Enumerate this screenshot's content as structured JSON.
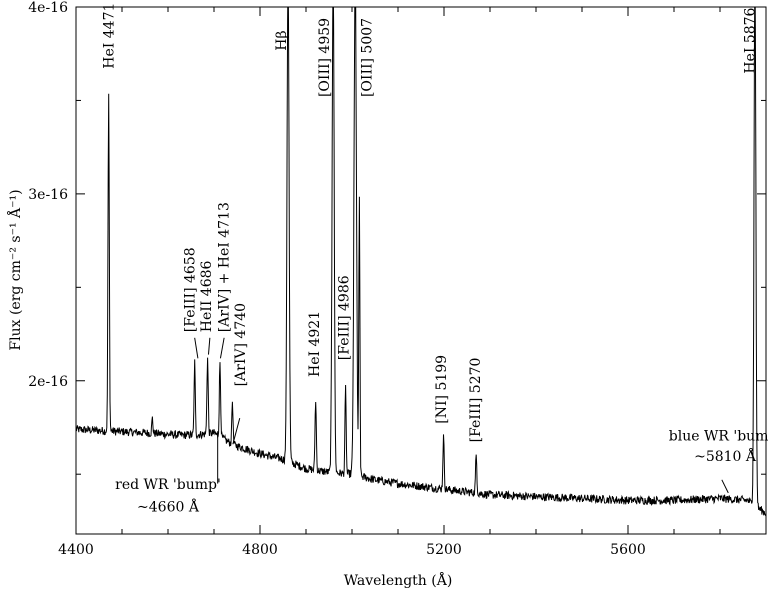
{
  "chart_data": {
    "type": "line",
    "xlabel": "Wavelength  (Å)",
    "ylabel": "Flux (erg cm⁻² s⁻¹ Å⁻¹)",
    "xlim": [
      4400,
      5900
    ],
    "ylim": [
      1.18e-16,
      4e-16
    ],
    "x_ticks": [
      {
        "value": 4400,
        "label": "4400"
      },
      {
        "value": 4800,
        "label": "4800"
      },
      {
        "value": 5200,
        "label": "5200"
      },
      {
        "value": 5600,
        "label": "5600"
      }
    ],
    "y_ticks": [
      {
        "value": 2e-16,
        "label": "2e-16"
      },
      {
        "value": 3e-16,
        "label": "3e-16"
      },
      {
        "value": 4e-16,
        "label": "4e-16"
      }
    ],
    "grid": false,
    "continuum": [
      [
        4400,
        1.74e-16
      ],
      [
        4480,
        1.73e-16
      ],
      [
        4560,
        1.72e-16
      ],
      [
        4620,
        1.71e-16
      ],
      [
        4660,
        1.71e-16
      ],
      [
        4700,
        1.72e-16
      ],
      [
        4740,
        1.66e-16
      ],
      [
        4800,
        1.61e-16
      ],
      [
        4850,
        1.58e-16
      ],
      [
        4900,
        1.53e-16
      ],
      [
        4950,
        1.51e-16
      ],
      [
        5000,
        1.5e-16
      ],
      [
        5050,
        1.47e-16
      ],
      [
        5100,
        1.45e-16
      ],
      [
        5200,
        1.42e-16
      ],
      [
        5300,
        1.39e-16
      ],
      [
        5400,
        1.38e-16
      ],
      [
        5500,
        1.37e-16
      ],
      [
        5600,
        1.36e-16
      ],
      [
        5700,
        1.36e-16
      ],
      [
        5800,
        1.37e-16
      ],
      [
        5860,
        1.36e-16
      ],
      [
        5900,
        1.29e-16
      ]
    ],
    "lines": [
      {
        "x": 4471,
        "peak": 3.52e-16,
        "width": 1.4
      },
      {
        "x": 4566,
        "peak": 1.8e-16,
        "width": 1.2
      },
      {
        "x": 4658,
        "peak": 2.1e-16,
        "width": 1.3
      },
      {
        "x": 4686,
        "peak": 2.12e-16,
        "width": 1.4
      },
      {
        "x": 4713,
        "peak": 2.1e-16,
        "width": 1.4
      },
      {
        "x": 4740,
        "peak": 1.89e-16,
        "width": 1.3
      },
      {
        "x": 4861,
        "peak": 4.2e-16,
        "width": 2.2
      },
      {
        "x": 4921,
        "peak": 1.9e-16,
        "width": 1.4
      },
      {
        "x": 4959,
        "peak": 4.2e-16,
        "width": 2.2
      },
      {
        "x": 4986,
        "peak": 1.96e-16,
        "width": 1.3
      },
      {
        "x": 5007,
        "peak": 4.2e-16,
        "width": 2.6
      },
      {
        "x": 5016,
        "peak": 2.96e-16,
        "width": 1.2
      },
      {
        "x": 5199,
        "peak": 1.7e-16,
        "width": 1.4
      },
      {
        "x": 5270,
        "peak": 1.6e-16,
        "width": 1.4
      },
      {
        "x": 5876,
        "peak": 4.2e-16,
        "width": 2.0
      }
    ],
    "noise_amplitude": 2.2e-18,
    "annotations": [
      {
        "text": "HeI 4471",
        "x": 4471,
        "y": 3.67e-16,
        "anchor": "start",
        "rotate": true
      },
      {
        "text": "Hβ",
        "x": 4846,
        "y": 3.82e-16,
        "anchor": "middle",
        "rotate": true
      },
      {
        "text": "[OIII] 4959",
        "x": 4939,
        "y": 3.73e-16,
        "anchor": "middle",
        "rotate": true
      },
      {
        "text": "[OIII] 5007",
        "x": 5032,
        "y": 3.73e-16,
        "anchor": "middle",
        "rotate": true
      },
      {
        "text": "HeI 5876",
        "x": 5864,
        "y": 3.82e-16,
        "anchor": "middle",
        "rotate": true
      },
      {
        "text": "[FeIII] 4658",
        "x": 4647,
        "y": 2.26e-16,
        "anchor": "start",
        "rotate": true
      },
      {
        "text": "HeII 4686",
        "x": 4683,
        "y": 2.26e-16,
        "anchor": "start",
        "rotate": true
      },
      {
        "text": "[ArIV] + HeI 4713",
        "x": 4721,
        "y": 2.26e-16,
        "anchor": "start",
        "rotate": true
      },
      {
        "text": "[ArIV] 4740",
        "x": 4757,
        "y": 1.97e-16,
        "anchor": "start",
        "rotate": true
      },
      {
        "text": "HeI 4921",
        "x": 4917,
        "y": 2.02e-16,
        "anchor": "start",
        "rotate": true
      },
      {
        "text": "[FeIII] 4986",
        "x": 4982,
        "y": 2.11e-16,
        "anchor": "start",
        "rotate": true
      },
      {
        "text": "[NI] 5199",
        "x": 5194,
        "y": 1.77e-16,
        "anchor": "start",
        "rotate": true
      },
      {
        "text": "[FeIII] 5270",
        "x": 5267,
        "y": 1.67e-16,
        "anchor": "start",
        "rotate": true
      },
      {
        "text": "red WR 'bump'",
        "x": 4600,
        "y": 1.42e-16,
        "anchor": "middle",
        "rotate": false
      },
      {
        "text": "~4660 Å",
        "x": 4600,
        "y": 1.3e-16,
        "anchor": "middle",
        "rotate": false
      },
      {
        "text": "blue WR 'bump'",
        "x": 5811,
        "y": 1.68e-16,
        "anchor": "middle",
        "rotate": false
      },
      {
        "text": "~5810 Å",
        "x": 5811,
        "y": 1.57e-16,
        "anchor": "middle",
        "rotate": false
      }
    ],
    "leaders": [
      {
        "x1": 4658,
        "y1": 2.23e-16,
        "x2": 4665,
        "y2": 2.12e-16
      },
      {
        "x1": 4691,
        "y1": 2.23e-16,
        "x2": 4688,
        "y2": 2.14e-16
      },
      {
        "x1": 4722,
        "y1": 2.23e-16,
        "x2": 4714,
        "y2": 2.12e-16
      },
      {
        "x1": 4756,
        "y1": 1.8e-16,
        "x2": 4741,
        "y2": 1.66e-16
      },
      {
        "x1": 4708,
        "y1": 1.45e-16,
        "x2": 4708,
        "y2": 1.73e-16
      },
      {
        "x1": 5804,
        "y1": 1.47e-16,
        "x2": 5818,
        "y2": 1.4e-16
      }
    ]
  }
}
